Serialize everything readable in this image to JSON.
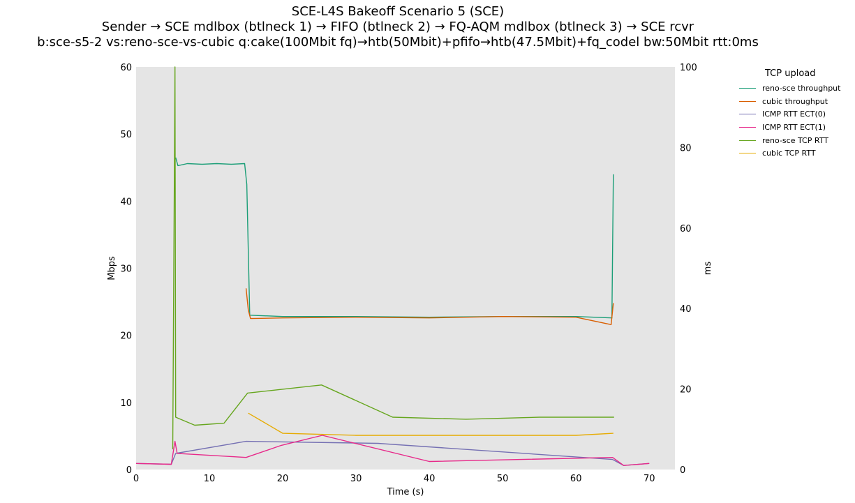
{
  "titles": {
    "line1": "SCE-L4S Bakeoff Scenario 5 (SCE)",
    "line2": "Sender → SCE mdlbox (btlneck 1) → FIFO (btlneck 2) → FQ-AQM mdlbox (btlneck 3) → SCE rcvr",
    "line3": "b:sce-s5-2 vs:reno-sce-vs-cubic q:cake(100Mbit fq)→htb(50Mbit)+pfifo→htb(47.5Mbit)+fq_codel bw:50Mbit rtt:0ms"
  },
  "chart_data": {
    "type": "line",
    "xlabel": "Time (s)",
    "ylabel": "Mbps",
    "y2label": "ms",
    "xlim": [
      0,
      73.5
    ],
    "ylim": [
      0,
      60
    ],
    "y2lim": [
      0,
      100
    ],
    "xticks": [
      0,
      10,
      20,
      30,
      40,
      50,
      60,
      70
    ],
    "yticks": [
      0,
      10,
      20,
      30,
      40,
      50,
      60
    ],
    "y2ticks": [
      0,
      20,
      40,
      60,
      80,
      100
    ],
    "grid": false,
    "background": "#e5e5e5",
    "legend": {
      "title": "TCP upload",
      "placement": "outside-right"
    },
    "series": [
      {
        "name": "reno-sce throughput",
        "color": "#1b9e77",
        "axis": "left",
        "points": [
          [
            5.4,
            46.5
          ],
          [
            5.7,
            45.3
          ],
          [
            7,
            45.6
          ],
          [
            9,
            45.5
          ],
          [
            11,
            45.6
          ],
          [
            13,
            45.5
          ],
          [
            14.8,
            45.6
          ],
          [
            15.1,
            42.5
          ],
          [
            15.5,
            23.0
          ],
          [
            20,
            22.8
          ],
          [
            30,
            22.8
          ],
          [
            40,
            22.7
          ],
          [
            50,
            22.8
          ],
          [
            60,
            22.8
          ],
          [
            64.9,
            22.6
          ],
          [
            65.1,
            44.0
          ]
        ]
      },
      {
        "name": "cubic throughput",
        "color": "#d95f02",
        "axis": "left",
        "points": [
          [
            15.0,
            27.0
          ],
          [
            15.3,
            23.8
          ],
          [
            15.6,
            22.5
          ],
          [
            20,
            22.6
          ],
          [
            30,
            22.7
          ],
          [
            40,
            22.6
          ],
          [
            50,
            22.8
          ],
          [
            60,
            22.7
          ],
          [
            64.8,
            21.6
          ],
          [
            65.1,
            24.8
          ]
        ]
      },
      {
        "name": "ICMP RTT ECT(0)",
        "color": "#7570b3",
        "axis": "right",
        "points": [
          [
            0,
            1.5
          ],
          [
            4.8,
            1.3
          ],
          [
            5.4,
            4.0
          ],
          [
            15,
            7.0
          ],
          [
            33,
            6.5
          ],
          [
            65,
            2.5
          ],
          [
            66.5,
            1.0
          ],
          [
            70,
            1.5
          ]
        ]
      },
      {
        "name": "ICMP RTT ECT(1)",
        "color": "#e7298a",
        "axis": "right",
        "points": [
          [
            0,
            1.5
          ],
          [
            4.8,
            1.3
          ],
          [
            5.3,
            7.0
          ],
          [
            5.6,
            4.0
          ],
          [
            15,
            3.0
          ],
          [
            19.8,
            6.0
          ],
          [
            25.4,
            8.5
          ],
          [
            40,
            2.0
          ],
          [
            65,
            3.0
          ],
          [
            66.5,
            1.0
          ],
          [
            70,
            1.5
          ]
        ]
      },
      {
        "name": "reno-sce TCP RTT",
        "color": "#66a61e",
        "axis": "right",
        "points": [
          [
            5.0,
            5.0
          ],
          [
            5.3,
            100.0
          ],
          [
            5.4,
            13.0
          ],
          [
            8,
            11.0
          ],
          [
            12,
            11.5
          ],
          [
            15.2,
            19.0
          ],
          [
            25.3,
            21.0
          ],
          [
            35,
            13.0
          ],
          [
            45,
            12.5
          ],
          [
            55,
            13.0
          ],
          [
            65.2,
            13.0
          ]
        ]
      },
      {
        "name": "cubic TCP RTT",
        "color": "#e6ab02",
        "axis": "right",
        "points": [
          [
            15.3,
            14.0
          ],
          [
            20,
            9.0
          ],
          [
            30,
            8.5
          ],
          [
            40,
            8.5
          ],
          [
            50,
            8.5
          ],
          [
            60,
            8.5
          ],
          [
            65.1,
            9.0
          ]
        ]
      }
    ]
  }
}
